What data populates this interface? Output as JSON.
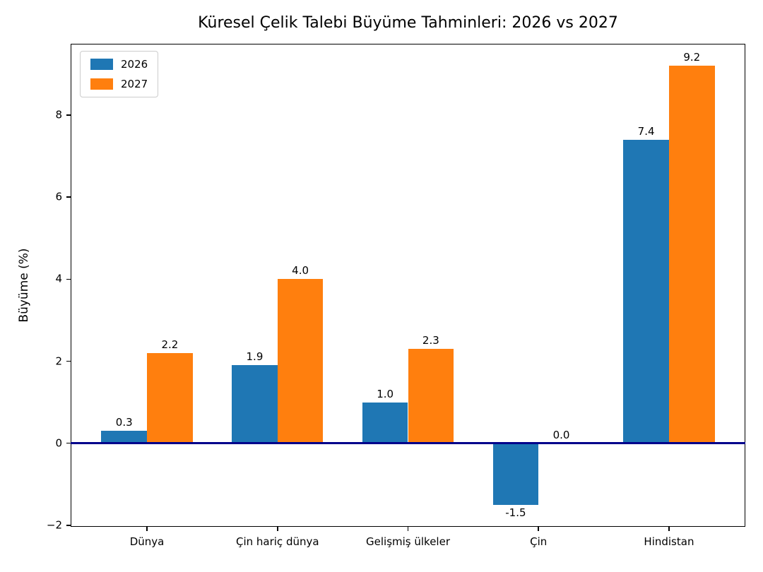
{
  "chart_data": {
    "type": "bar",
    "title": "Küresel Çelik Talebi Büyüme Tahminleri: 2026 vs 2027",
    "ylabel": "Büyüme (%)",
    "xlabel": "",
    "categories": [
      "Dünya",
      "Çin hariç dünya",
      "Gelişmiş ülkeler",
      "Çin",
      "Hindistan"
    ],
    "series": [
      {
        "name": "2026",
        "color": "#1f77b4",
        "values": [
          0.3,
          1.9,
          1.0,
          -1.5,
          7.4
        ],
        "labels": [
          "0.3",
          "1.9",
          "1.0",
          "-1.5",
          "7.4"
        ]
      },
      {
        "name": "2027",
        "color": "#ff7f0e",
        "values": [
          2.2,
          4.0,
          2.3,
          0.0,
          9.2
        ],
        "labels": [
          "2.2",
          "4.0",
          "2.3",
          "0.0",
          "9.2"
        ]
      }
    ],
    "yticks": [
      -2,
      0,
      2,
      4,
      6,
      8
    ],
    "ytick_labels": [
      "−2",
      "0",
      "2",
      "4",
      "6",
      "8"
    ],
    "ylim": [
      -2.035,
      9.735
    ],
    "xlim": [
      -0.585,
      4.585
    ],
    "bar_width": 0.35,
    "zero_line_color": "#00008b",
    "grid": false,
    "legend_position": "upper left",
    "background": "#ffffff",
    "text_color": "#000000"
  }
}
